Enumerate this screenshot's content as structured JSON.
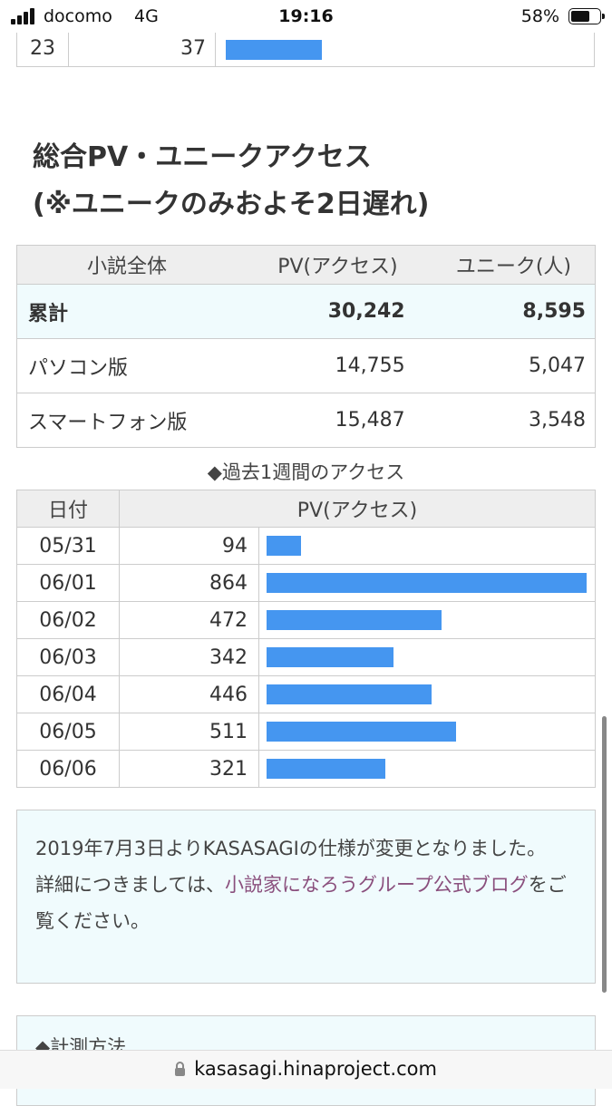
{
  "status": {
    "carrier": "docomo",
    "network": "4G",
    "time": "19:16",
    "battery": "58%"
  },
  "top_row": {
    "day": "23",
    "value": "37",
    "bar_fraction": 0.3
  },
  "heading": {
    "line1": "総合PV・ユニークアクセス",
    "line2": "(※ユニークのみおよそ2日遅れ)"
  },
  "summary": {
    "headers": [
      "小説全体",
      "PV(アクセス)",
      "ユニーク(人)"
    ],
    "rows": [
      {
        "label": "累計",
        "pv": "30,242",
        "unique": "8,595"
      },
      {
        "label": "パソコン版",
        "pv": "14,755",
        "unique": "5,047"
      },
      {
        "label": "スマートフォン版",
        "pv": "15,487",
        "unique": "3,548"
      }
    ]
  },
  "weekly": {
    "title": "◆過去1週間のアクセス",
    "headers": [
      "日付",
      "PV(アクセス)"
    ],
    "max": 864,
    "rows": [
      {
        "date": "05/31",
        "pv": 94
      },
      {
        "date": "06/01",
        "pv": 864
      },
      {
        "date": "06/02",
        "pv": 472
      },
      {
        "date": "06/03",
        "pv": 342
      },
      {
        "date": "06/04",
        "pv": 446
      },
      {
        "date": "06/05",
        "pv": 511
      },
      {
        "date": "06/06",
        "pv": 321
      }
    ]
  },
  "notice": {
    "line1": "2019年7月3日よりKASASAGIの仕様が変更となりました。",
    "line2_prefix": "詳細につきましては、",
    "link_text": "小説家になろうグループ公式ブログ",
    "line2_suffix": "をご覧ください。"
  },
  "notice2": {
    "title": "◆計測方法"
  },
  "url": "kasasagi.hinaproject.com",
  "colors": {
    "bar": "#4596f0",
    "link": "#8a4f7d",
    "highlight_bg": "#f0fbfd"
  }
}
